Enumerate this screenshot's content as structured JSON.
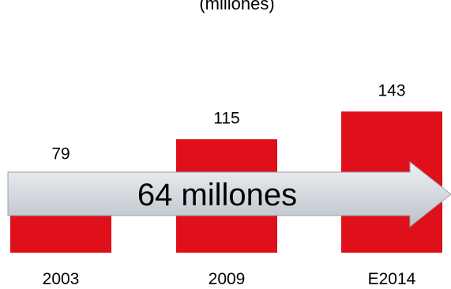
{
  "chart_data": {
    "type": "bar",
    "subtitle": "(millones)",
    "categories": [
      "2003",
      "2009",
      "E2014"
    ],
    "values": [
      79,
      115,
      143
    ],
    "value_labels": [
      "79",
      "115",
      "143"
    ],
    "ylim": [
      0,
      200
    ],
    "grid": false,
    "bar_color": "#e0101b",
    "annotation": {
      "text": "64 millones",
      "shape": "arrow",
      "fill_color": "#d5d8de"
    }
  }
}
